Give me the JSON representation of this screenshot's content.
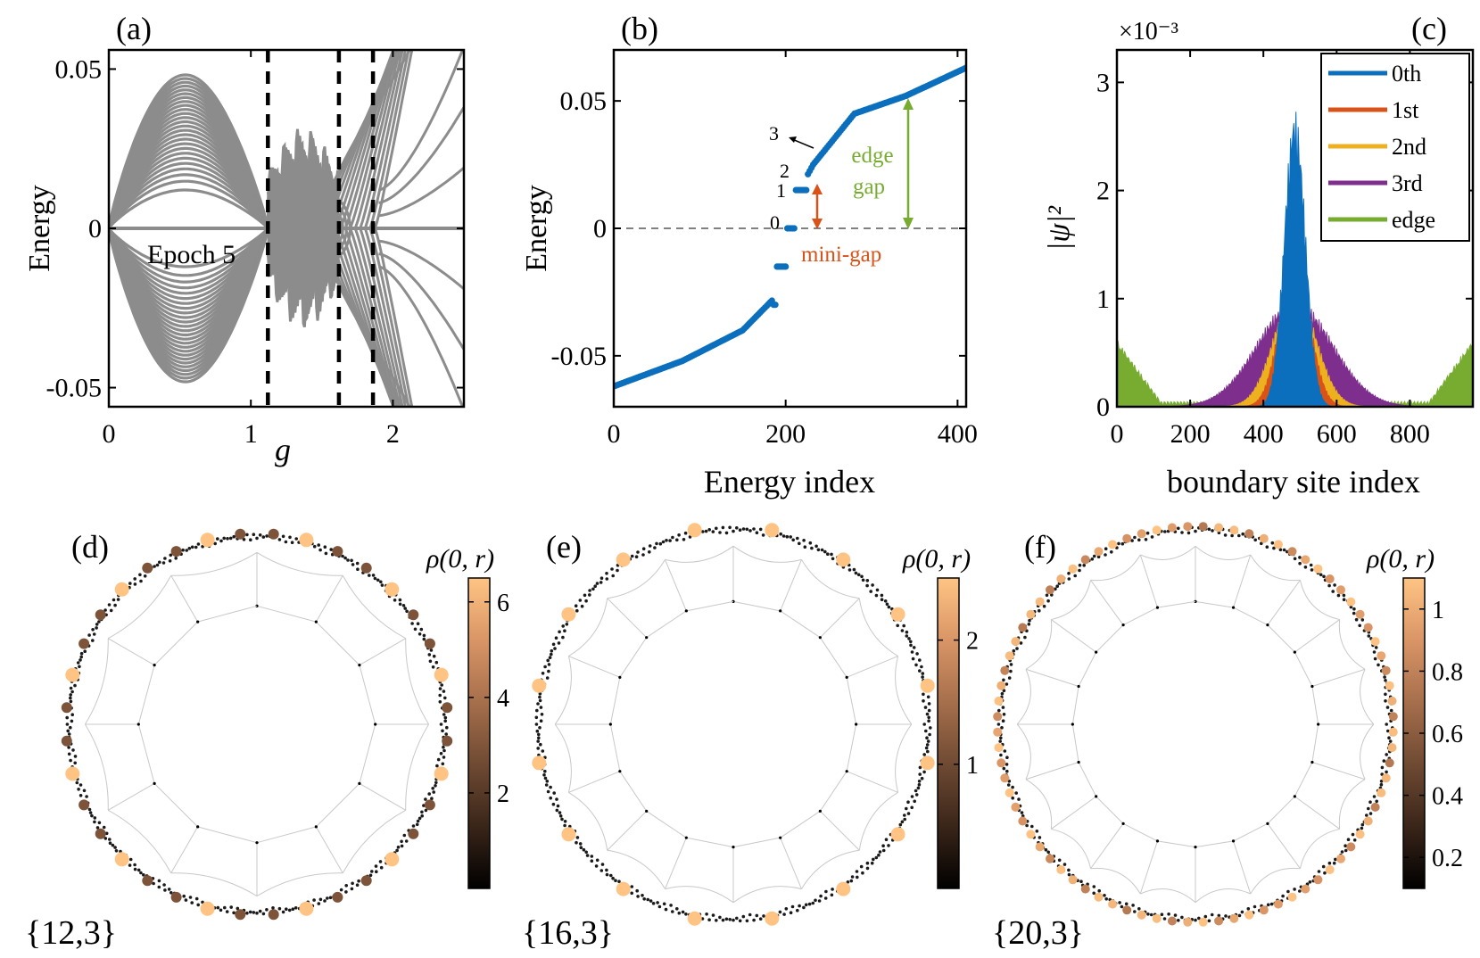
{
  "colors": {
    "band": "#8c8c8c",
    "spectrum": "#0b6fbd",
    "zero0": "#0b6fbd",
    "zero1": "#d95319",
    "zero2": "#edb120",
    "zero3": "#7e2f8e",
    "edge": "#77ac30",
    "minigap": "#d95319",
    "edgegap": "#77ac30",
    "colormap": [
      "#000000",
      "#3a2519",
      "#6f4a33",
      "#a66f4c",
      "#d99566",
      "#ffc484"
    ]
  },
  "chart_data": [
    {
      "id": "a",
      "type": "line",
      "panel_label": "(a)",
      "title": "",
      "xlabel": "g",
      "ylabel": "Energy",
      "xlim": [
        0,
        2.5
      ],
      "ylim": [
        -0.056,
        0.056
      ],
      "xticks": [
        0,
        1,
        2
      ],
      "xtick_labels": [
        "0",
        "1",
        "2"
      ],
      "yticks": [
        -0.05,
        0,
        0.05
      ],
      "ytick_labels": [
        "-0.05",
        "0",
        "0.05"
      ],
      "annotation": "Epoch 5",
      "dashed_vlines": [
        1.12,
        1.62,
        1.86
      ],
      "n_bands": 26,
      "band_peak_at_g": 0.58,
      "band_peak_max": 0.052,
      "band_peak_min": 0.013
    },
    {
      "id": "b",
      "type": "scatter",
      "panel_label": "(b)",
      "xlabel": "Energy index",
      "ylabel": "Energy",
      "xlim": [
        0,
        410
      ],
      "ylim": [
        -0.07,
        0.07
      ],
      "xticks": [
        0,
        200,
        400
      ],
      "xtick_labels": [
        "0",
        "200",
        "400"
      ],
      "yticks": [
        -0.05,
        0,
        0.05
      ],
      "ytick_labels": [
        "-0.05",
        "0",
        "0.05"
      ],
      "x": [
        0,
        80,
        150,
        185,
        196,
        205,
        216,
        232,
        280,
        340,
        410
      ],
      "y": [
        -0.062,
        -0.052,
        -0.04,
        -0.028,
        -0.015,
        0.0,
        0.015,
        0.025,
        0.045,
        0.052,
        0.063
      ],
      "level_labels": [
        "0",
        "1",
        "2",
        "3"
      ],
      "minigap_label": "mini-gap",
      "edgegap_label_1": "edge",
      "edgegap_label_2": "gap"
    },
    {
      "id": "c",
      "type": "area",
      "panel_label": "(c)",
      "xlabel": "boundary site index",
      "ylabel": "|ψ|²",
      "scale_label": "×10⁻³",
      "xlim": [
        0,
        972
      ],
      "ylim": [
        0,
        0.0033
      ],
      "xticks": [
        0,
        200,
        400,
        600,
        800
      ],
      "xtick_labels": [
        "0",
        "200",
        "400",
        "600",
        "800"
      ],
      "yticks": [
        0,
        0.001,
        0.002,
        0.003
      ],
      "ytick_labels": [
        "0",
        "1",
        "2",
        "3"
      ],
      "series": [
        {
          "name": "0th",
          "peak_center": 486,
          "peak_max": 0.00275,
          "width": 70
        },
        {
          "name": "1st",
          "peak_center": 486,
          "peak_max": 0.0014,
          "width": 100
        },
        {
          "name": "2nd",
          "peak_center": 486,
          "peak_max": 0.0011,
          "width": 140
        },
        {
          "name": "3rd",
          "peak_center": 486,
          "peak_max": 0.001,
          "width": 230
        },
        {
          "name": "edge",
          "edge_max": 0.00058
        }
      ]
    },
    {
      "id": "d",
      "type": "scatter",
      "panel_label": "(d)",
      "tiling_label": "{12,3}",
      "colorbar_label": "ρ(0, r)",
      "colorbar_range": [
        0,
        6.5
      ],
      "colorbar_ticks": [
        2,
        4,
        6
      ],
      "colorbar_tick_labels": [
        "2",
        "4",
        "6"
      ],
      "n_bright": 12,
      "n_outer": 12
    },
    {
      "id": "e",
      "type": "scatter",
      "panel_label": "(e)",
      "tiling_label": "{16,3}",
      "colorbar_label": "ρ(0, r)",
      "colorbar_range": [
        0,
        2.5
      ],
      "colorbar_ticks": [
        1,
        2
      ],
      "colorbar_tick_labels": [
        "1",
        "2"
      ],
      "n_bright": 16,
      "n_outer": 16
    },
    {
      "id": "f",
      "type": "scatter",
      "panel_label": "(f)",
      "tiling_label": "{20,3}",
      "colorbar_label": "ρ(0, r)",
      "colorbar_range": [
        0.1,
        1.1
      ],
      "colorbar_ticks": [
        0.2,
        0.4,
        0.6,
        0.8,
        1
      ],
      "colorbar_tick_labels": [
        "0.2",
        "0.4",
        "0.6",
        "0.8",
        "1"
      ],
      "n_bright": 80,
      "n_outer": 20
    }
  ]
}
